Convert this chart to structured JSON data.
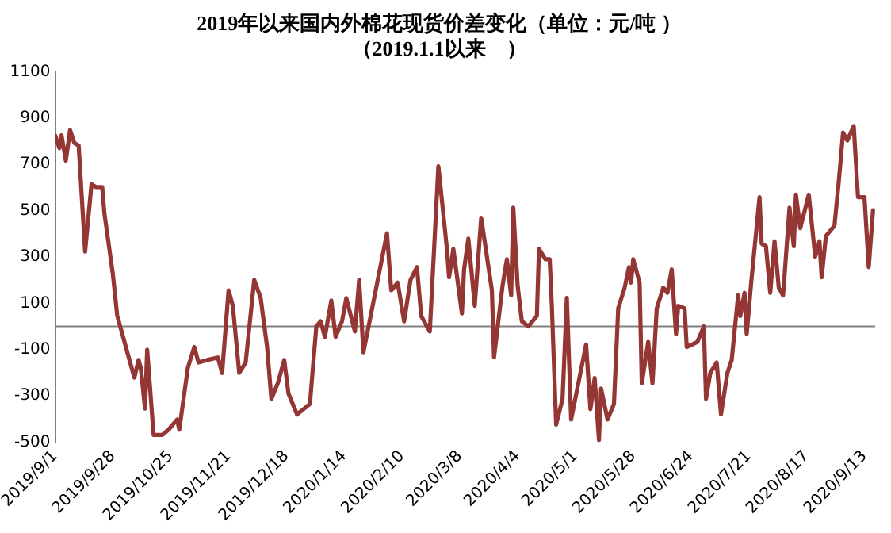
{
  "chart_data": {
    "type": "line",
    "title": "2019年以来国内外棉花现货价差变化（单位：元/吨 ）",
    "subtitle": "（2019.1.1以来　）",
    "x": [
      "2019-09-01",
      "2019-09-03",
      "2019-09-04",
      "2019-09-06",
      "2019-09-08",
      "2019-09-10",
      "2019-09-12",
      "2019-09-15",
      "2019-09-18",
      "2019-09-20",
      "2019-09-23",
      "2019-09-24",
      "2019-09-28",
      "2019-09-30",
      "2019-10-04",
      "2019-10-08",
      "2019-10-10",
      "2019-10-11",
      "2019-10-13",
      "2019-10-14",
      "2019-10-17",
      "2019-10-21",
      "2019-10-24",
      "2019-10-28",
      "2019-10-29",
      "2019-11-02",
      "2019-11-05",
      "2019-11-07",
      "2019-11-11",
      "2019-11-16",
      "2019-11-18",
      "2019-11-21",
      "2019-11-23",
      "2019-11-26",
      "2019-11-29",
      "2019-12-03",
      "2019-12-06",
      "2019-12-09",
      "2019-12-11",
      "2019-12-14",
      "2019-12-17",
      "2019-12-19",
      "2019-12-23",
      "2019-12-29",
      "2020-01-01",
      "2020-01-03",
      "2020-01-05",
      "2020-01-08",
      "2020-01-10",
      "2020-01-13",
      "2020-01-15",
      "2020-01-19",
      "2020-01-21",
      "2020-01-23",
      "2020-02-03",
      "2020-02-05",
      "2020-02-08",
      "2020-02-11",
      "2020-02-14",
      "2020-02-17",
      "2020-02-19",
      "2020-02-23",
      "2020-02-27",
      "2020-03-02",
      "2020-03-03",
      "2020-03-05",
      "2020-03-09",
      "2020-03-10",
      "2020-03-12",
      "2020-03-15",
      "2020-03-18",
      "2020-03-23",
      "2020-03-24",
      "2020-03-28",
      "2020-03-30",
      "2020-04-01",
      "2020-04-02",
      "2020-04-04",
      "2020-04-06",
      "2020-04-09",
      "2020-04-13",
      "2020-04-14",
      "2020-04-17",
      "2020-04-19",
      "2020-04-20",
      "2020-04-22",
      "2020-04-25",
      "2020-04-27",
      "2020-04-29",
      "2020-05-06",
      "2020-05-08",
      "2020-05-10",
      "2020-05-12",
      "2020-05-13",
      "2020-05-16",
      "2020-05-19",
      "2020-05-21",
      "2020-05-24",
      "2020-05-26",
      "2020-05-27",
      "2020-05-28",
      "2020-05-31",
      "2020-06-01",
      "2020-06-04",
      "2020-06-06",
      "2020-06-08",
      "2020-06-11",
      "2020-06-13",
      "2020-06-15",
      "2020-06-17",
      "2020-06-18",
      "2020-06-21",
      "2020-06-22",
      "2020-06-27",
      "2020-06-30",
      "2020-07-01",
      "2020-07-03",
      "2020-07-06",
      "2020-07-08",
      "2020-07-11",
      "2020-07-13",
      "2020-07-16",
      "2020-07-17",
      "2020-07-19",
      "2020-07-20",
      "2020-07-22",
      "2020-07-26",
      "2020-07-27",
      "2020-07-29",
      "2020-07-31",
      "2020-08-02",
      "2020-08-04",
      "2020-08-06",
      "2020-08-09",
      "2020-08-11",
      "2020-08-12",
      "2020-08-14",
      "2020-08-18",
      "2020-08-21",
      "2020-08-23",
      "2020-08-24",
      "2020-08-26",
      "2020-08-30",
      "2020-09-01",
      "2020-09-03",
      "2020-09-05",
      "2020-09-08",
      "2020-09-10",
      "2020-09-13",
      "2020-09-15",
      "2020-09-17"
    ],
    "series": [
      {
        "color": "#943634",
        "values": [
          825,
          770,
          825,
          716,
          848,
          792,
          781,
          323,
          614,
          602,
          602,
          490,
          223,
          47,
          -87,
          -221,
          -145,
          -179,
          -355,
          -100,
          -469,
          -469,
          -446,
          -402,
          -446,
          -179,
          -89,
          -156,
          -145,
          -134,
          -201,
          156,
          89,
          -201,
          -156,
          201,
          123,
          -89,
          -313,
          -246,
          -145,
          -290,
          -380,
          -335,
          0,
          22,
          -45,
          112,
          -45,
          22,
          122,
          -22,
          201,
          -112,
          402,
          156,
          189,
          22,
          201,
          256,
          45,
          -22,
          692,
          335,
          212,
          335,
          56,
          246,
          379,
          89,
          469,
          156,
          -134,
          178,
          290,
          134,
          513,
          178,
          22,
          0,
          45,
          335,
          290,
          290,
          89,
          -424,
          -313,
          123,
          -402,
          -78,
          -357,
          -223,
          -491,
          -268,
          -402,
          -335,
          78,
          167,
          256,
          189,
          290,
          189,
          -246,
          -67,
          -246,
          78,
          167,
          145,
          246,
          -33,
          89,
          78,
          -89,
          -67,
          0,
          -313,
          -201,
          -156,
          -380,
          -201,
          -145,
          134,
          45,
          145,
          -33,
          178,
          558,
          357,
          346,
          145,
          368,
          167,
          134,
          513,
          346,
          569,
          424,
          569,
          301,
          368,
          212,
          390,
          435,
          624,
          837,
          803,
          865,
          558,
          558,
          256,
          502
        ]
      }
    ],
    "xlim": [
      "2019-09-01",
      "2020-09-18"
    ],
    "xticks": [
      {
        "value": "2019-09-01",
        "label": "2019/9/1"
      },
      {
        "value": "2019-09-28",
        "label": "2019/9/28"
      },
      {
        "value": "2019-10-25",
        "label": "2019/10/25"
      },
      {
        "value": "2019-11-21",
        "label": "2019/11/21"
      },
      {
        "value": "2019-12-18",
        "label": "2019/12/18"
      },
      {
        "value": "2020-01-14",
        "label": "2020/1/14"
      },
      {
        "value": "2020-02-10",
        "label": "2020/2/10"
      },
      {
        "value": "2020-03-08",
        "label": "2020/3/8"
      },
      {
        "value": "2020-04-04",
        "label": "2020/4/4"
      },
      {
        "value": "2020-05-01",
        "label": "2020/5/1"
      },
      {
        "value": "2020-05-28",
        "label": "2020/5/28"
      },
      {
        "value": "2020-06-24",
        "label": "2020/6/24"
      },
      {
        "value": "2020-07-21",
        "label": "2020/7/21"
      },
      {
        "value": "2020-08-17",
        "label": "2020/8/17"
      },
      {
        "value": "2020-09-13",
        "label": "2020/9/13"
      }
    ],
    "ylim": [
      -500,
      1100
    ],
    "yticks": [
      -500,
      -300,
      -100,
      100,
      300,
      500,
      700,
      900,
      1100
    ],
    "ref_lines": [
      {
        "axis": "y",
        "value": 0,
        "color": "#808080"
      }
    ],
    "grid": false,
    "legend": false,
    "marker": "none",
    "line_style": "solid"
  }
}
